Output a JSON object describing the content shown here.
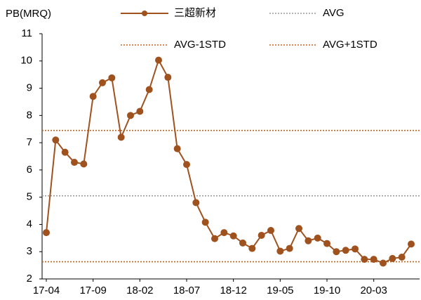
{
  "chart_data": {
    "type": "line",
    "y_label": "PB(MRQ)",
    "categories": [
      "17-04",
      null,
      null,
      null,
      null,
      "17-09",
      null,
      null,
      null,
      null,
      "18-02",
      null,
      null,
      null,
      null,
      "18-07",
      null,
      null,
      null,
      null,
      "18-12",
      null,
      null,
      null,
      null,
      "19-05",
      null,
      null,
      null,
      null,
      "19-10",
      null,
      null,
      null,
      null,
      "20-03",
      null,
      null,
      null,
      null
    ],
    "series": [
      {
        "name": "三超新材",
        "color": "#a0521e",
        "values": [
          3.7,
          7.1,
          6.65,
          6.28,
          6.22,
          8.7,
          9.2,
          9.38,
          7.2,
          8.0,
          8.15,
          8.95,
          10.03,
          9.4,
          6.78,
          6.2,
          4.8,
          4.08,
          3.48,
          3.7,
          3.58,
          3.32,
          3.12,
          3.6,
          3.78,
          3.02,
          3.12,
          3.85,
          3.4,
          3.5,
          3.3,
          3.0,
          3.05,
          3.1,
          2.72,
          2.72,
          2.58,
          2.75,
          2.8,
          3.28
        ]
      }
    ],
    "reference_lines": [
      {
        "name": "AVG",
        "value": 5.05,
        "color": "#999999"
      },
      {
        "name": "AVG-1STD",
        "value": 2.63,
        "color": "#c0651f"
      },
      {
        "name": "AVG+1STD",
        "value": 7.45,
        "color": "#c0651f"
      }
    ],
    "ylim": [
      2,
      11
    ],
    "yticks": [
      2,
      3,
      4,
      5,
      6,
      7,
      8,
      9,
      10,
      11
    ]
  }
}
